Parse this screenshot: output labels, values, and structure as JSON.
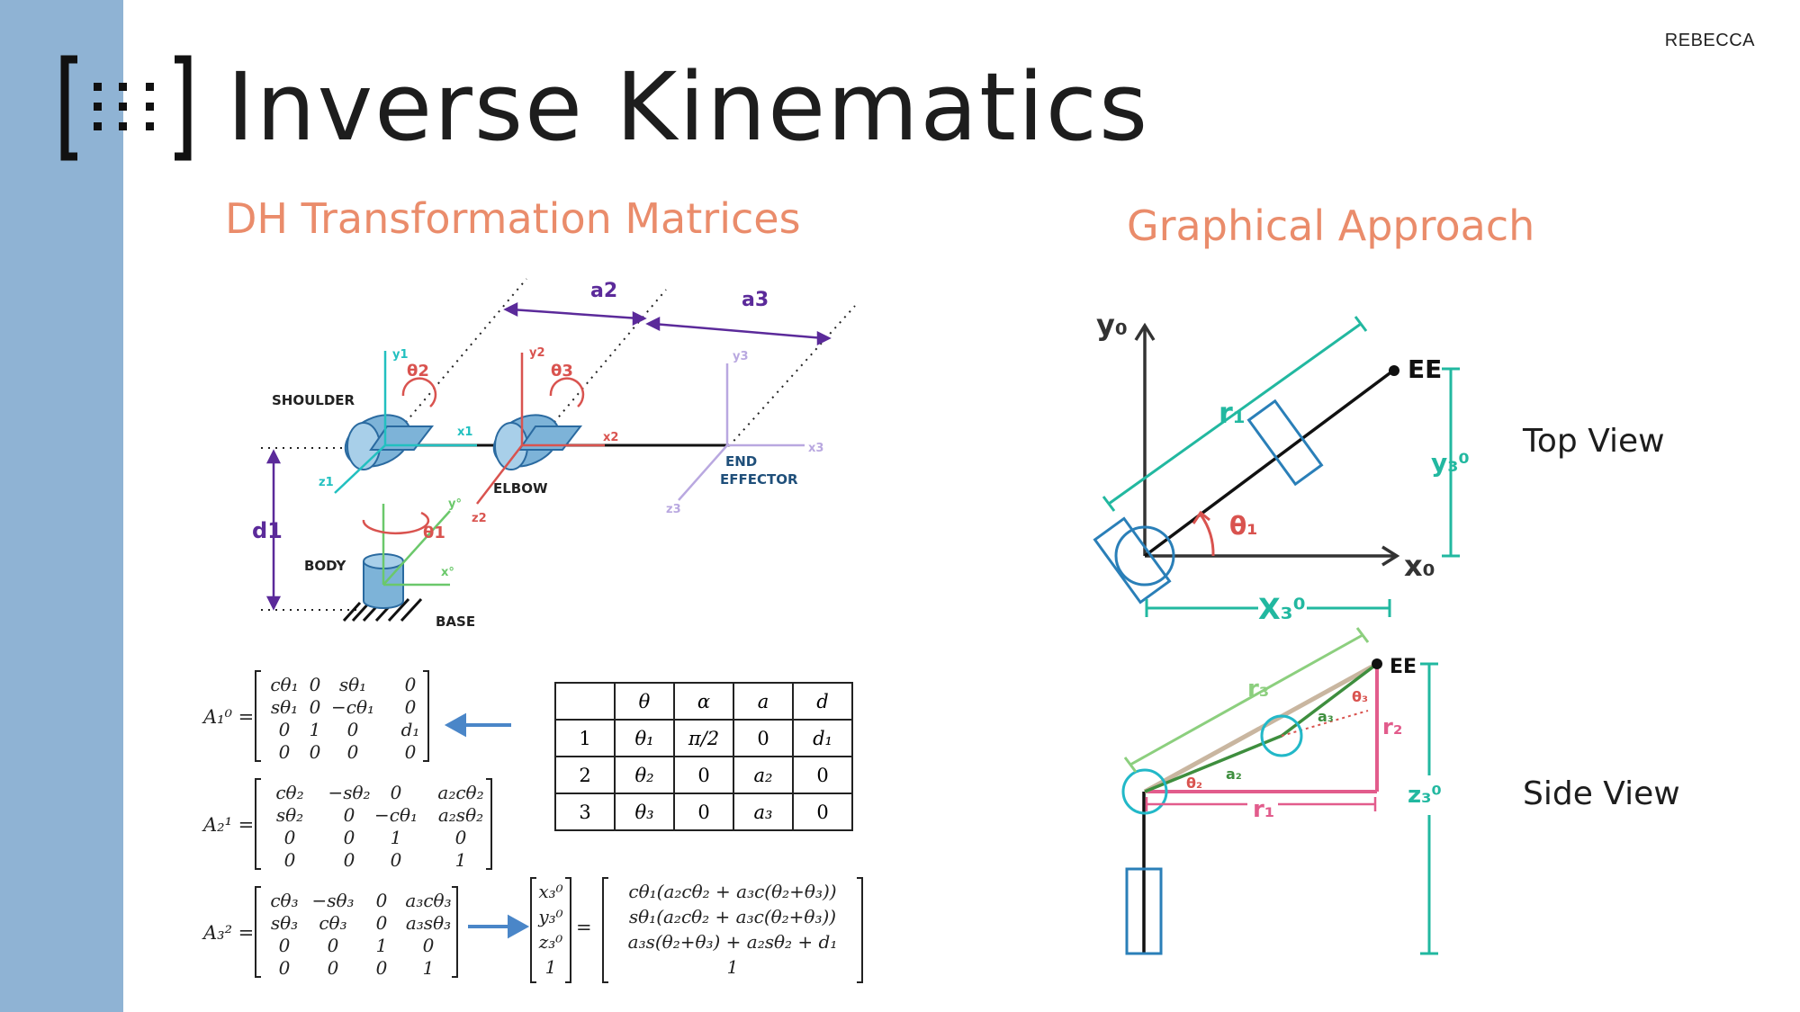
{
  "slide": {
    "title": "Inverse Kinematics",
    "author": "REBECCA",
    "left_heading": "DH Transformation Matrices",
    "right_heading": "Graphical Approach",
    "top_view_label": "Top View",
    "side_view_label": "Side View"
  },
  "robot_diagram": {
    "labels": {
      "shoulder": "SHOULDER",
      "elbow": "ELBOW",
      "body": "BODY",
      "base": "BASE",
      "end_effector_line1": "END",
      "end_effector_line2": "EFFECTOR",
      "a2": "a2",
      "a3": "a3",
      "d1": "d1",
      "theta1": "θ1",
      "theta2": "θ2",
      "theta3": "θ3",
      "y0": "y°",
      "x0": "x°",
      "y1": "y1",
      "x1": "x1",
      "z1": "z1",
      "y2": "y2",
      "x2": "x2",
      "z2": "z2",
      "y3": "y3",
      "x3": "x3",
      "z3": "z3"
    }
  },
  "dh_table": {
    "headers": [
      "",
      "θ",
      "α",
      "a",
      "d"
    ],
    "rows": [
      [
        "1",
        "θ₁",
        "π/2",
        "0",
        "d₁"
      ],
      [
        "2",
        "θ₂",
        "0",
        "a₂",
        "0"
      ],
      [
        "3",
        "θ₃",
        "0",
        "a₃",
        "0"
      ]
    ]
  },
  "matrices": {
    "A1_label": "A₁⁰ =",
    "A1": [
      [
        "cθ₁",
        "0",
        "sθ₁",
        "0"
      ],
      [
        "sθ₁",
        "0",
        "−cθ₁",
        "0"
      ],
      [
        "0",
        "1",
        "0",
        "d₁"
      ],
      [
        "0",
        "0",
        "0",
        "0"
      ]
    ],
    "A2_label": "A₂¹ =",
    "A2": [
      [
        "cθ₂",
        "−sθ₂",
        "0",
        "a₂cθ₂"
      ],
      [
        "sθ₂",
        "0",
        "−cθ₁",
        "a₂sθ₂"
      ],
      [
        "0",
        "0",
        "1",
        "0"
      ],
      [
        "0",
        "0",
        "0",
        "1"
      ]
    ],
    "A3_label": "A₃² =",
    "A3": [
      [
        "cθ₃",
        "−sθ₃",
        "0",
        "a₃cθ₃"
      ],
      [
        "sθ₃",
        "cθ₃",
        "0",
        "a₃sθ₃"
      ],
      [
        "0",
        "0",
        "1",
        "0"
      ],
      [
        "0",
        "0",
        "0",
        "1"
      ]
    ],
    "position_vector": [
      "x₃⁰",
      "y₃⁰",
      "z₃⁰",
      "1"
    ],
    "equals": "=",
    "result": [
      "cθ₁(a₂cθ₂ + a₃c(θ₂+θ₃))",
      "sθ₁(a₂cθ₂ + a₃c(θ₂+θ₃))",
      "a₃s(θ₂+θ₃) + a₂sθ₂ + d₁",
      "1"
    ]
  },
  "top_view": {
    "y_axis": "y₀",
    "x_axis": "x₀",
    "ee": "EE",
    "r1": "r₁",
    "theta1": "θ₁",
    "y3": "y₃⁰",
    "x3": "X₃⁰"
  },
  "side_view": {
    "ee": "EE",
    "r3": "r₃",
    "r2": "r₂",
    "r1": "r₁",
    "z3": "z₃⁰",
    "a2": "a₂",
    "a3": "a₃",
    "theta2": "θ₂",
    "theta3": "θ₃"
  },
  "colors": {
    "sidebar": "#8fb3d4",
    "heading": "#ea8c6b",
    "teal": "#22b8a0",
    "blue": "#2a7fb8",
    "purple": "#5b2a9a",
    "red": "#d9534f",
    "pink": "#e25c8c",
    "green": "#3e8e3e",
    "lightgreen": "#8ccf7e",
    "arrow": "#4a86c8"
  }
}
